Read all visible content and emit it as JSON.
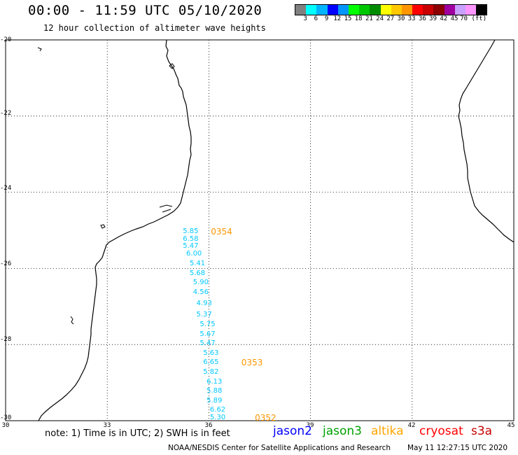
{
  "header": {
    "title": "00:00 - 11:59 UTC 05/10/2020",
    "subtitle": "12 hour collection of altimeter wave heights"
  },
  "colorbar": {
    "colors": [
      "#808080",
      "#00ffff",
      "#00b4ff",
      "#0000ff",
      "#0096ff",
      "#00ff00",
      "#00c800",
      "#008c00",
      "#ffff00",
      "#ffc800",
      "#ff9600",
      "#ff0000",
      "#c80000",
      "#8c0000",
      "#a000a0",
      "#c8a0ff",
      "#ff96ff",
      "#000000"
    ],
    "labels": [
      "3",
      "6",
      "9",
      "12",
      "15",
      "18",
      "21",
      "24",
      "27",
      "30",
      "33",
      "36",
      "39",
      "42",
      "45",
      "70 (ft)"
    ]
  },
  "axes": {
    "lat_labels": [
      "-20",
      "-22",
      "-24",
      "-26",
      "-28",
      "-30"
    ],
    "lon_labels": [
      "30",
      "33",
      "36",
      "39",
      "42",
      "45"
    ],
    "lat_range": [
      -30,
      -20
    ],
    "lon_range": [
      30,
      45
    ]
  },
  "wave_points": [
    {
      "value": "5.85",
      "lon": 35.5,
      "lat": -25.05
    },
    {
      "value": "6.58",
      "lon": 35.5,
      "lat": -25.25
    },
    {
      "value": "5.47",
      "lon": 35.5,
      "lat": -25.45
    },
    {
      "value": "6.00",
      "lon": 35.6,
      "lat": -25.65
    },
    {
      "value": "5.41",
      "lon": 35.7,
      "lat": -25.9
    },
    {
      "value": "5.68",
      "lon": 35.7,
      "lat": -26.15
    },
    {
      "value": "5.90",
      "lon": 35.8,
      "lat": -26.4
    },
    {
      "value": "4.56",
      "lon": 35.8,
      "lat": -26.65
    },
    {
      "value": "4.93",
      "lon": 35.9,
      "lat": -26.95
    },
    {
      "value": "5.37",
      "lon": 35.9,
      "lat": -27.25
    },
    {
      "value": "5.75",
      "lon": 36.0,
      "lat": -27.5
    },
    {
      "value": "5.67",
      "lon": 36.0,
      "lat": -27.75
    },
    {
      "value": "5.47",
      "lon": 36.0,
      "lat": -28.0
    },
    {
      "value": "5.63",
      "lon": 36.1,
      "lat": -28.25
    },
    {
      "value": "6.65",
      "lon": 36.1,
      "lat": -28.5
    },
    {
      "value": "5.82",
      "lon": 36.1,
      "lat": -28.75
    },
    {
      "value": "6.13",
      "lon": 36.2,
      "lat": -29.0
    },
    {
      "value": "5.88",
      "lon": 36.2,
      "lat": -29.25
    },
    {
      "value": "5.89",
      "lon": 36.2,
      "lat": -29.5
    },
    {
      "value": "6.62",
      "lon": 36.3,
      "lat": -29.75
    },
    {
      "value": "5.30",
      "lon": 36.3,
      "lat": -29.95
    }
  ],
  "wave_color": "#00c8ff",
  "pass_labels": [
    {
      "text": "0354",
      "lon": 36.1,
      "lat": -25.05
    },
    {
      "text": "0353",
      "lon": 37.0,
      "lat": -28.5
    },
    {
      "text": "0352",
      "lon": 37.4,
      "lat": -29.95
    }
  ],
  "pass_color": "#ff9600",
  "legend": {
    "note": "note: 1) Time is in UTC; 2) SWH is in feet",
    "satellites": [
      {
        "name": "jason2",
        "color": "#0000ff"
      },
      {
        "name": "jason3",
        "color": "#00a000"
      },
      {
        "name": "altika",
        "color": "#ffa500"
      },
      {
        "name": "cryosat",
        "color": "#ff0000"
      },
      {
        "name": "s3a",
        "color": "#c80000"
      }
    ]
  },
  "footer": {
    "credit": "NOAA/NESDIS Center for Satellite Applications and Research",
    "timestamp": "May 11 12:27:15 UTC 2020"
  }
}
